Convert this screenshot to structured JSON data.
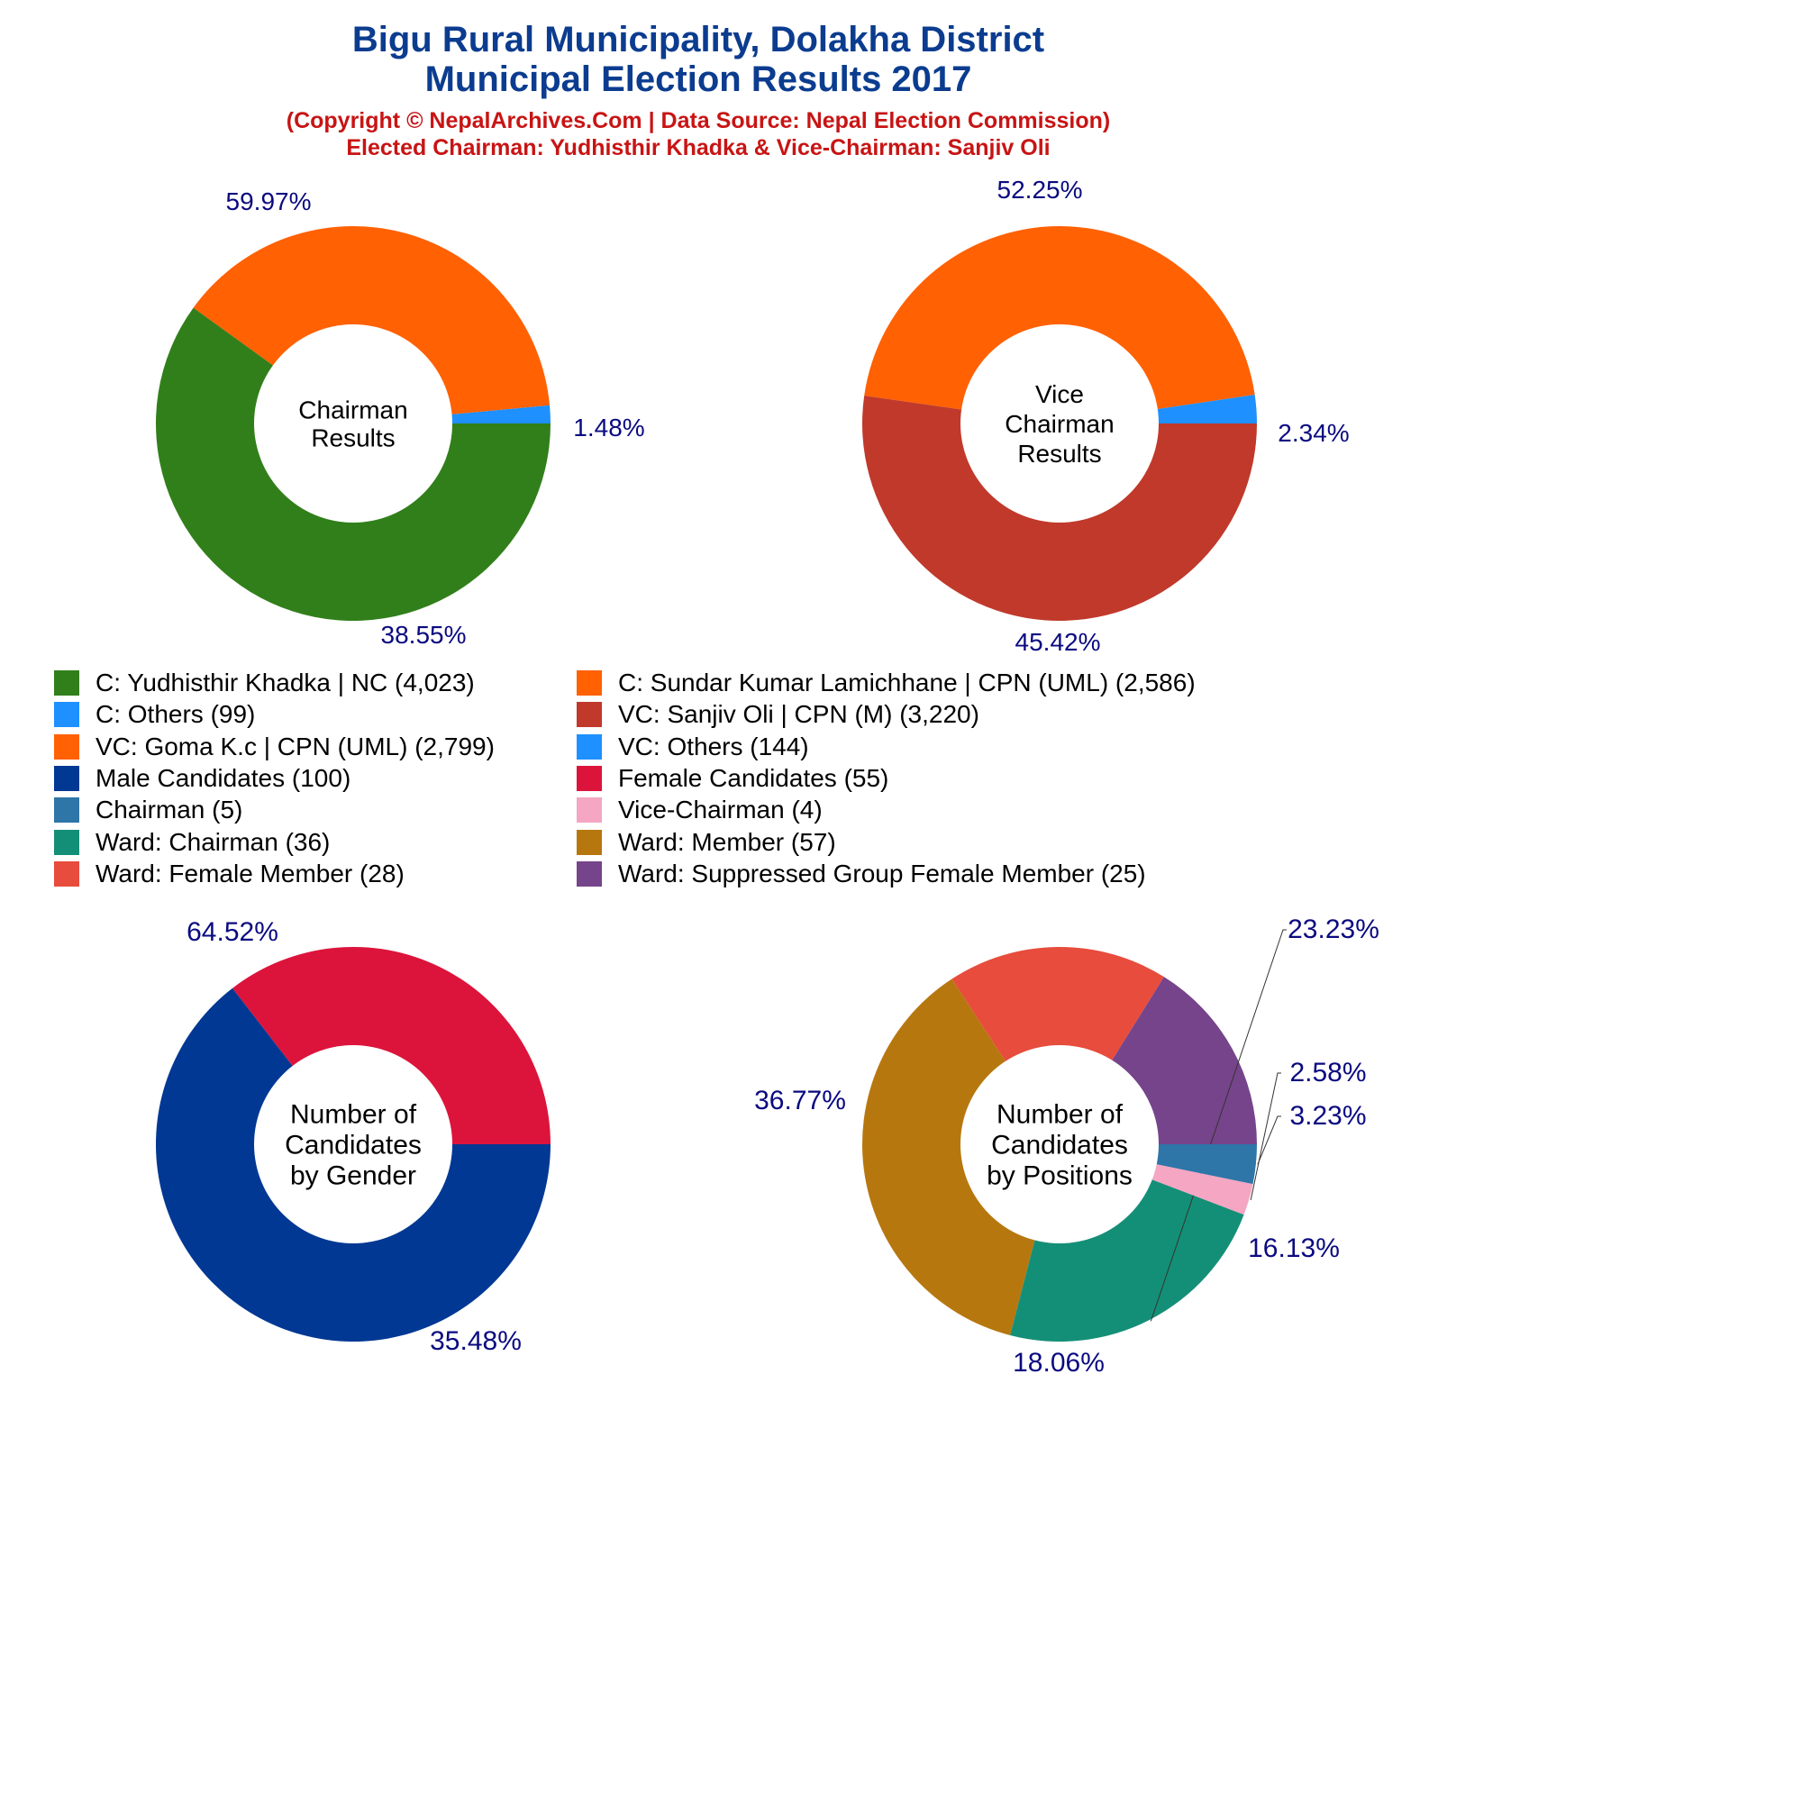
{
  "header": {
    "title_line1": "Bigu Rural Municipality, Dolakha District",
    "title_line2": "Municipal Election Results 2017",
    "subtitle_line1": "(Copyright © NepalArchives.Com | Data Source: Nepal Election Commission)",
    "subtitle_line2": "Elected Chairman: Yudhisthir Khadka & Vice-Chairman: Sanjiv Oli"
  },
  "colors": {
    "title": "#0b3c8f",
    "subtitle": "#c81414",
    "percent_label": "#0a0a80"
  },
  "legend": [
    {
      "label": "C: Yudhisthir Khadka | NC (4,023)",
      "color": "#317f1a"
    },
    {
      "label": "C: Sundar Kumar Lamichhane | CPN (UML) (2,586)",
      "color": "#ff6103"
    },
    {
      "label": "C: Others (99)",
      "color": "#1e90ff"
    },
    {
      "label": "VC: Sanjiv Oli | CPN (M) (3,220)",
      "color": "#c0392b"
    },
    {
      "label": "VC: Goma K.c | CPN (UML) (2,799)",
      "color": "#ff6103"
    },
    {
      "label": "VC: Others (144)",
      "color": "#1e90ff"
    },
    {
      "label": "Male Candidates (100)",
      "color": "#003893"
    },
    {
      "label": "Female Candidates (55)",
      "color": "#dc143c"
    },
    {
      "label": "Chairman (5)",
      "color": "#2e75a8"
    },
    {
      "label": "Vice-Chairman (4)",
      "color": "#f4a6c2"
    },
    {
      "label": "Ward: Chairman (36)",
      "color": "#148f77"
    },
    {
      "label": "Ward: Member (57)",
      "color": "#b7770f"
    },
    {
      "label": "Ward: Female Member (28)",
      "color": "#e74c3c"
    },
    {
      "label": "Ward: Suppressed Group Female Member (25)",
      "color": "#76448a"
    }
  ],
  "chart_data": [
    {
      "type": "pie",
      "center_label": [
        "Chairman",
        "Results"
      ],
      "slices": [
        {
          "name": "C: Others",
          "value": 99,
          "percent_label": "1.48%",
          "color": "#1e90ff"
        },
        {
          "name": "C: Sundar Kumar Lamichhane | CPN (UML)",
          "value": 2586,
          "percent_label": "38.55%",
          "color": "#ff6103"
        },
        {
          "name": "C: Yudhisthir Khadka | NC",
          "value": 4023,
          "percent_label": "59.97%",
          "color": "#317f1a"
        }
      ]
    },
    {
      "type": "pie",
      "center_label": [
        "Vice",
        "Chairman",
        "Results"
      ],
      "slices": [
        {
          "name": "VC: Others",
          "value": 144,
          "percent_label": "2.34%",
          "color": "#1e90ff"
        },
        {
          "name": "VC: Goma K.c | CPN (UML)",
          "value": 2799,
          "percent_label": "45.42%",
          "color": "#ff6103"
        },
        {
          "name": "VC: Sanjiv Oli | CPN (M)",
          "value": 3220,
          "percent_label": "52.25%",
          "color": "#c0392b"
        }
      ]
    },
    {
      "type": "pie",
      "center_label": [
        "Number of",
        "Candidates",
        "by Gender"
      ],
      "slices": [
        {
          "name": "Female Candidates",
          "value": 55,
          "percent_label": "35.48%",
          "color": "#dc143c"
        },
        {
          "name": "Male Candidates",
          "value": 100,
          "percent_label": "64.52%",
          "color": "#003893"
        }
      ]
    },
    {
      "type": "pie",
      "center_label": [
        "Number of",
        "Candidates",
        "by Positions"
      ],
      "slices": [
        {
          "name": "Ward: Suppressed Group Female Member",
          "value": 25,
          "percent_label": "16.13%",
          "color": "#76448a"
        },
        {
          "name": "Ward: Female Member",
          "value": 28,
          "percent_label": "18.06%",
          "color": "#e74c3c"
        },
        {
          "name": "Ward: Member",
          "value": 57,
          "percent_label": "36.77%",
          "color": "#b7770f"
        },
        {
          "name": "Ward: Chairman",
          "value": 36,
          "percent_label": "23.23%",
          "color": "#148f77"
        },
        {
          "name": "Vice-Chairman",
          "value": 4,
          "percent_label": "2.58%",
          "color": "#f4a6c2"
        },
        {
          "name": "Chairman",
          "value": 5,
          "percent_label": "3.23%",
          "color": "#2e75a8"
        }
      ]
    }
  ]
}
